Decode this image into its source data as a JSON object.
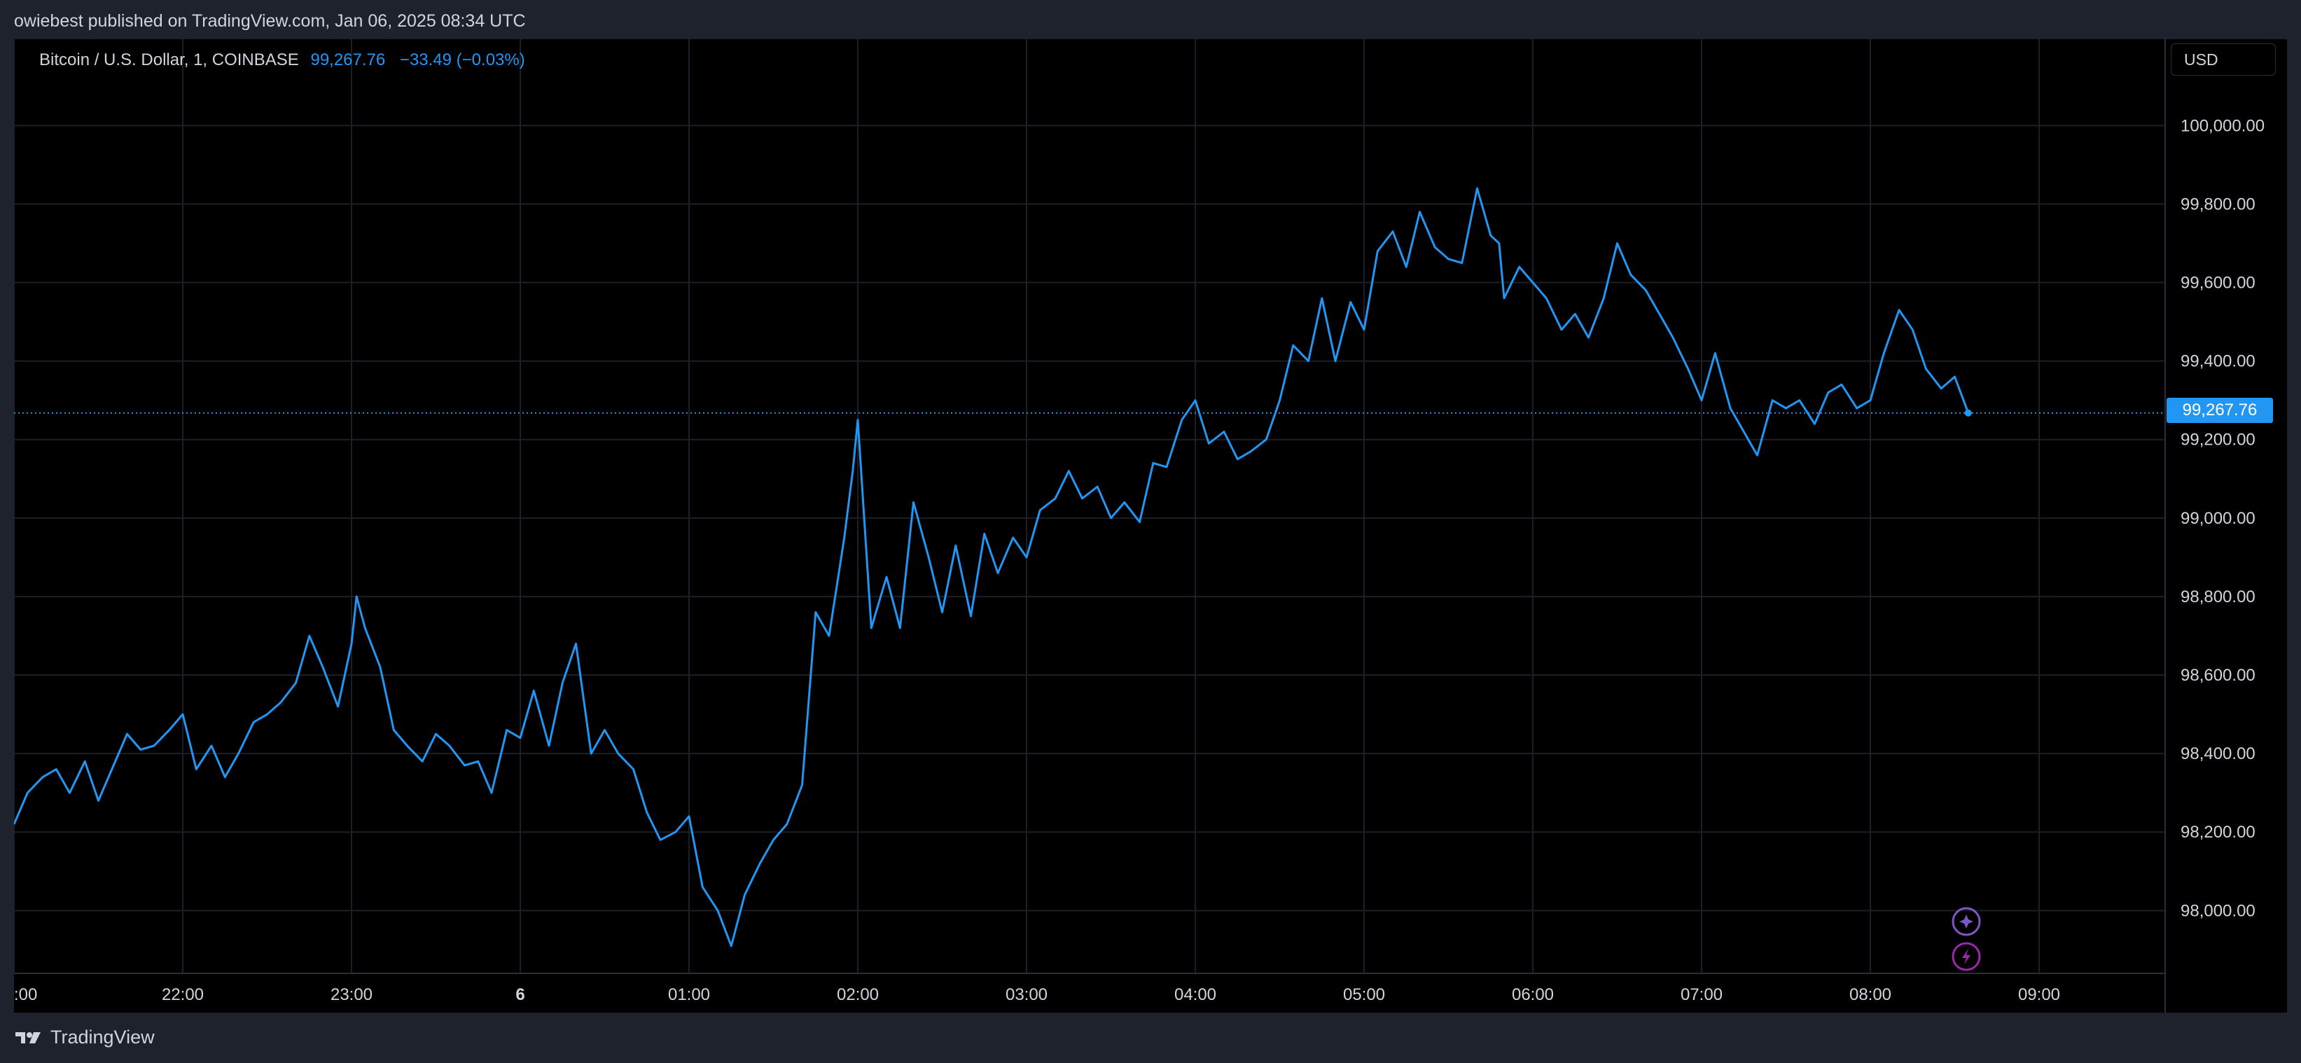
{
  "header": {
    "published_by": "owiebest published on TradingView.com, Jan 06, 2025 08:34 UTC"
  },
  "legend": {
    "symbol": "Bitcoin / U.S. Dollar, 1, COINBASE",
    "last_price": "99,267.76",
    "change": "−33.49 (−0.03%)"
  },
  "price_scale": {
    "currency": "USD",
    "last_price_tag": "99,267.76"
  },
  "footer": {
    "brand": "TradingView",
    "logo_icon": "tradingview-logo-icon"
  },
  "floating_buttons": [
    {
      "icon": "sparkle-icon"
    },
    {
      "icon": "lightning-icon"
    }
  ],
  "colors": {
    "line": "#2196f3",
    "background": "#000000",
    "grid": "#1c1f26",
    "axis_text": "#d1d4dc",
    "frame": "#1e222d",
    "accent_purple": "#7e57c2"
  },
  "chart_data": {
    "type": "line",
    "title": "Bitcoin / U.S. Dollar, 1, COINBASE",
    "xlabel": "",
    "ylabel": "",
    "currency": "USD",
    "ylim": [
      97840,
      100220
    ],
    "y_ticks": [
      98000,
      98200,
      98400,
      98600,
      98800,
      99000,
      99200,
      99400,
      99600,
      99800,
      100000
    ],
    "y_tick_labels": [
      "98,000.00",
      "98,200.00",
      "98,400.00",
      "98,600.00",
      "98,800.00",
      "99,000.00",
      "99,200.00",
      "99,400.00",
      "99,600.00",
      "99,800.00",
      "100,000.00"
    ],
    "x_ticks": [
      {
        "label": ":00",
        "hour": 21.0
      },
      {
        "label": "22:00",
        "hour": 22.0
      },
      {
        "label": "23:00",
        "hour": 23.0
      },
      {
        "label": "6",
        "hour": 24.0,
        "bold": true
      },
      {
        "label": "01:00",
        "hour": 25.0
      },
      {
        "label": "02:00",
        "hour": 26.0
      },
      {
        "label": "03:00",
        "hour": 27.0
      },
      {
        "label": "04:00",
        "hour": 28.0
      },
      {
        "label": "05:00",
        "hour": 29.0
      },
      {
        "label": "06:00",
        "hour": 30.0
      },
      {
        "label": "07:00",
        "hour": 31.0
      },
      {
        "label": "08:00",
        "hour": 32.0
      },
      {
        "label": "09:00",
        "hour": 33.0
      }
    ],
    "x_unit": "hours since Jan 05 00:00 UTC",
    "xlim": [
      21.0,
      33.75
    ],
    "last_value": 99267.76,
    "grid": true,
    "series": [
      {
        "x": [
          21.0,
          21.08,
          21.17,
          21.25,
          21.33,
          21.42,
          21.5,
          21.58,
          21.67,
          21.75,
          21.83,
          21.92,
          22.0,
          22.08,
          22.17,
          22.25,
          22.33,
          22.42,
          22.5,
          22.58,
          22.67,
          22.75,
          22.83,
          22.92,
          23.0,
          23.03,
          23.08,
          23.17,
          23.25,
          23.33,
          23.42,
          23.5,
          23.58,
          23.67,
          23.75,
          23.83,
          23.92,
          24.0,
          24.08,
          24.17,
          24.25,
          24.33,
          24.42,
          24.5,
          24.58,
          24.67,
          24.75,
          24.83,
          24.92,
          25.0,
          25.08,
          25.17,
          25.25,
          25.33,
          25.42,
          25.5,
          25.58,
          25.67,
          25.75,
          25.83,
          25.92,
          25.97,
          26.0,
          26.08,
          26.17,
          26.25,
          26.33,
          26.42,
          26.5,
          26.58,
          26.67,
          26.75,
          26.83,
          26.92,
          27.0,
          27.08,
          27.17,
          27.25,
          27.33,
          27.42,
          27.5,
          27.58,
          27.67,
          27.75,
          27.83,
          27.92,
          28.0,
          28.08,
          28.17,
          28.25,
          28.33,
          28.42,
          28.5,
          28.58,
          28.67,
          28.75,
          28.83,
          28.92,
          29.0,
          29.08,
          29.17,
          29.25,
          29.33,
          29.42,
          29.5,
          29.58,
          29.67,
          29.75,
          29.8,
          29.83,
          29.92,
          30.0,
          30.08,
          30.17,
          30.25,
          30.33,
          30.42,
          30.5,
          30.58,
          30.67,
          30.75,
          30.83,
          30.92,
          31.0,
          31.08,
          31.17,
          31.25,
          31.33,
          31.42,
          31.5,
          31.58,
          31.67,
          31.75,
          31.83,
          31.92,
          32.0,
          32.08,
          32.17,
          32.25,
          32.33,
          32.42,
          32.5,
          32.58
        ],
        "values": [
          98220,
          98300,
          98340,
          98360,
          98300,
          98380,
          98280,
          98360,
          98450,
          98410,
          98420,
          98460,
          98500,
          98360,
          98420,
          98340,
          98400,
          98480,
          98500,
          98530,
          98580,
          98700,
          98620,
          98520,
          98680,
          98800,
          98720,
          98620,
          98460,
          98420,
          98380,
          98450,
          98420,
          98370,
          98380,
          98300,
          98460,
          98440,
          98560,
          98420,
          98580,
          98680,
          98400,
          98460,
          98400,
          98360,
          98250,
          98180,
          98200,
          98240,
          98060,
          98000,
          97910,
          98040,
          98120,
          98180,
          98220,
          98320,
          98760,
          98700,
          98950,
          99120,
          99250,
          98720,
          98850,
          98720,
          99040,
          98900,
          98760,
          98930,
          98750,
          98960,
          98860,
          98950,
          98900,
          99020,
          99050,
          99120,
          99050,
          99080,
          99000,
          99040,
          98990,
          99140,
          99130,
          99250,
          99300,
          99190,
          99220,
          99150,
          99170,
          99200,
          99300,
          99440,
          99400,
          99560,
          99400,
          99550,
          99480,
          99680,
          99730,
          99640,
          99780,
          99690,
          99660,
          99650,
          99840,
          99720,
          99700,
          99560,
          99640,
          99600,
          99560,
          99480,
          99520,
          99460,
          99560,
          99700,
          99620,
          99580,
          99520,
          99460,
          99380,
          99300,
          99420,
          99280,
          99220,
          99160,
          99300,
          99280,
          99300,
          99240,
          99320,
          99340,
          99280,
          99300,
          99420,
          99530,
          99480,
          99380,
          99330,
          99360,
          99267.76
        ]
      }
    ]
  }
}
